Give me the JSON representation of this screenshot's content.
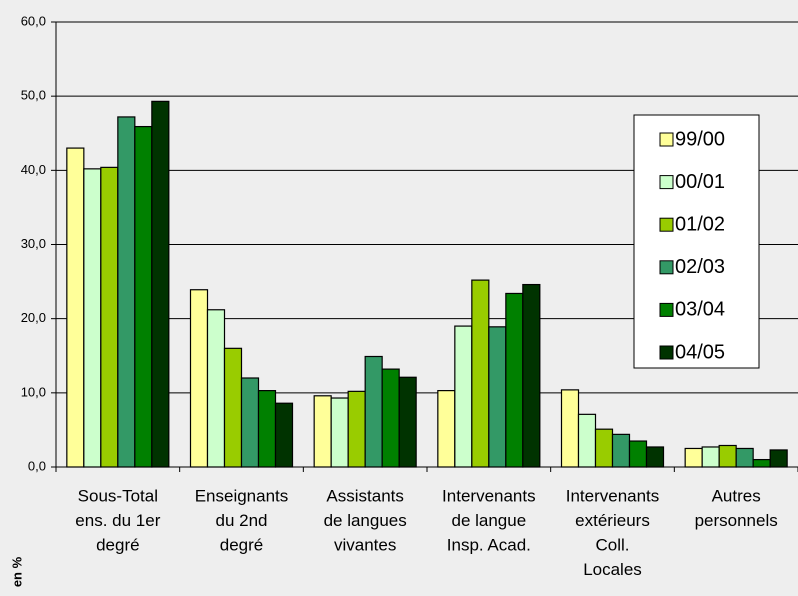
{
  "chart_data": {
    "type": "bar",
    "categories": [
      [
        "Sous-Total",
        "ens. du 1er",
        "degré"
      ],
      [
        "Enseignants",
        "du 2nd",
        "degré"
      ],
      [
        "Assistants",
        "de langues",
        "vivantes"
      ],
      [
        "Intervenants",
        "de langue",
        "Insp. Acad."
      ],
      [
        "Intervenants",
        "extérieurs",
        "Coll.",
        "Locales"
      ],
      [
        "Autres",
        "personnels"
      ]
    ],
    "series": [
      {
        "name": "99/00",
        "color": "#ffff99",
        "values": [
          43.0,
          23.9,
          9.6,
          10.3,
          10.4,
          2.5
        ]
      },
      {
        "name": "00/01",
        "color": "#ccffcc",
        "values": [
          40.2,
          21.2,
          9.3,
          19.0,
          7.1,
          2.7
        ]
      },
      {
        "name": "01/02",
        "color": "#99cc00",
        "values": [
          40.4,
          16.0,
          10.2,
          25.2,
          5.1,
          2.9
        ]
      },
      {
        "name": "02/03",
        "color": "#339966",
        "values": [
          47.2,
          12.0,
          14.9,
          18.9,
          4.4,
          2.5
        ]
      },
      {
        "name": "03/04",
        "color": "#008000",
        "values": [
          45.9,
          10.3,
          13.2,
          23.4,
          3.5,
          1.0
        ]
      },
      {
        "name": "04/05",
        "color": "#003300",
        "values": [
          49.3,
          8.6,
          12.1,
          24.6,
          2.7,
          2.3
        ]
      }
    ],
    "ylabel": "en %",
    "ylim": [
      0,
      60
    ],
    "yticks": [
      {
        "value": 0,
        "label": "0,0"
      },
      {
        "value": 10,
        "label": "10,0"
      },
      {
        "value": 20,
        "label": "20,0"
      },
      {
        "value": 30,
        "label": "30,0"
      },
      {
        "value": 40,
        "label": "40,0"
      },
      {
        "value": 50,
        "label": "50,0"
      },
      {
        "value": 60,
        "label": "60,0"
      }
    ],
    "grid": true,
    "legend": "right"
  }
}
